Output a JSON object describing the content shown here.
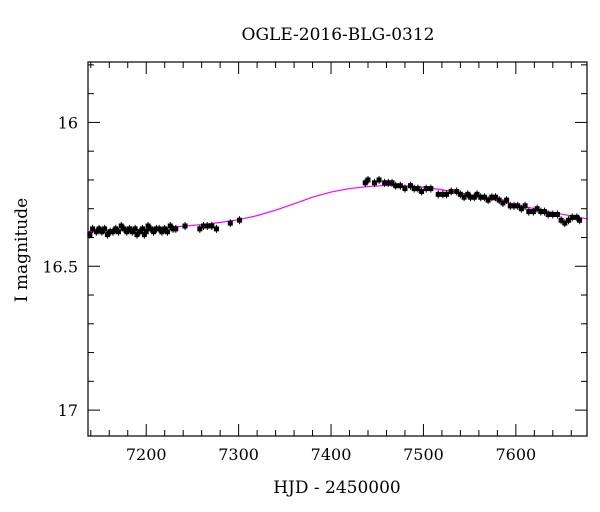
{
  "chart_data": {
    "type": "scatter",
    "title": "OGLE-2016-BLG-0312",
    "xlabel": "HJD - 2450000",
    "ylabel": "I magnitude",
    "xlim": [
      7137,
      7677
    ],
    "ylim": [
      17.09,
      15.79
    ],
    "y_inverted": true,
    "x_ticks_major": [
      7200,
      7300,
      7400,
      7500,
      7600
    ],
    "x_ticks_minor_step": 20,
    "y_ticks_major": [
      16,
      16.5,
      17
    ],
    "y_ticks_minor_step": 0.1,
    "colors": {
      "points": "#000000",
      "model": "#ff00ff",
      "axes": "#000000"
    },
    "series": [
      {
        "kind": "points",
        "points": [
          [
            7139,
            16.39
          ],
          [
            7142,
            16.37
          ],
          [
            7146,
            16.38
          ],
          [
            7149,
            16.37
          ],
          [
            7152,
            16.38
          ],
          [
            7155,
            16.37
          ],
          [
            7158,
            16.39
          ],
          [
            7161,
            16.38
          ],
          [
            7164,
            16.38
          ],
          [
            7167,
            16.37
          ],
          [
            7170,
            16.38
          ],
          [
            7173,
            16.36
          ],
          [
            7176,
            16.37
          ],
          [
            7179,
            16.38
          ],
          [
            7182,
            16.37
          ],
          [
            7185,
            16.38
          ],
          [
            7188,
            16.37
          ],
          [
            7190,
            16.39
          ],
          [
            7193,
            16.38
          ],
          [
            7196,
            16.37
          ],
          [
            7198,
            16.39
          ],
          [
            7200,
            16.38
          ],
          [
            7202,
            16.36
          ],
          [
            7205,
            16.37
          ],
          [
            7208,
            16.38
          ],
          [
            7211,
            16.37
          ],
          [
            7214,
            16.37
          ],
          [
            7217,
            16.38
          ],
          [
            7220,
            16.37
          ],
          [
            7223,
            16.38
          ],
          [
            7226,
            16.36
          ],
          [
            7229,
            16.37
          ],
          [
            7232,
            16.37
          ],
          [
            7242,
            16.36
          ],
          [
            7258,
            16.37
          ],
          [
            7262,
            16.36
          ],
          [
            7266,
            16.36
          ],
          [
            7271,
            16.36
          ],
          [
            7276,
            16.37
          ],
          [
            7291,
            16.35
          ],
          [
            7301,
            16.34
          ],
          [
            7437,
            16.21
          ],
          [
            7440,
            16.2
          ],
          [
            7447,
            16.21
          ],
          [
            7452,
            16.2
          ],
          [
            7458,
            16.21
          ],
          [
            7462,
            16.21
          ],
          [
            7466,
            16.21
          ],
          [
            7470,
            16.22
          ],
          [
            7475,
            16.22
          ],
          [
            7480,
            16.23
          ],
          [
            7486,
            16.22
          ],
          [
            7490,
            16.23
          ],
          [
            7494,
            16.23
          ],
          [
            7498,
            16.24
          ],
          [
            7503,
            16.23
          ],
          [
            7508,
            16.23
          ],
          [
            7516,
            16.25
          ],
          [
            7521,
            16.25
          ],
          [
            7525,
            16.25
          ],
          [
            7530,
            16.24
          ],
          [
            7536,
            16.24
          ],
          [
            7540,
            16.25
          ],
          [
            7544,
            16.26
          ],
          [
            7548,
            16.25
          ],
          [
            7551,
            16.26
          ],
          [
            7555,
            16.26
          ],
          [
            7558,
            16.25
          ],
          [
            7562,
            16.26
          ],
          [
            7566,
            16.26
          ],
          [
            7570,
            16.27
          ],
          [
            7574,
            16.26
          ],
          [
            7578,
            16.26
          ],
          [
            7582,
            16.27
          ],
          [
            7586,
            16.28
          ],
          [
            7590,
            16.27
          ],
          [
            7594,
            16.29
          ],
          [
            7598,
            16.29
          ],
          [
            7602,
            16.29
          ],
          [
            7606,
            16.3
          ],
          [
            7610,
            16.29
          ],
          [
            7614,
            16.31
          ],
          [
            7619,
            16.31
          ],
          [
            7623,
            16.3
          ],
          [
            7627,
            16.31
          ],
          [
            7631,
            16.31
          ],
          [
            7635,
            16.32
          ],
          [
            7640,
            16.32
          ],
          [
            7645,
            16.32
          ],
          [
            7649,
            16.34
          ],
          [
            7653,
            16.35
          ],
          [
            7657,
            16.34
          ],
          [
            7661,
            16.33
          ],
          [
            7666,
            16.33
          ],
          [
            7669,
            16.34
          ]
        ]
      },
      {
        "kind": "line",
        "points": [
          [
            7137,
            16.38
          ],
          [
            7160,
            16.378
          ],
          [
            7180,
            16.375
          ],
          [
            7200,
            16.371
          ],
          [
            7220,
            16.366
          ],
          [
            7240,
            16.361
          ],
          [
            7260,
            16.355
          ],
          [
            7280,
            16.348
          ],
          [
            7300,
            16.338
          ],
          [
            7320,
            16.324
          ],
          [
            7340,
            16.305
          ],
          [
            7360,
            16.283
          ],
          [
            7380,
            16.26
          ],
          [
            7400,
            16.242
          ],
          [
            7420,
            16.23
          ],
          [
            7440,
            16.223
          ],
          [
            7460,
            16.219
          ],
          [
            7480,
            16.22
          ],
          [
            7500,
            16.225
          ],
          [
            7520,
            16.234
          ],
          [
            7540,
            16.245
          ],
          [
            7560,
            16.258
          ],
          [
            7580,
            16.272
          ],
          [
            7600,
            16.286
          ],
          [
            7620,
            16.3
          ],
          [
            7640,
            16.313
          ],
          [
            7660,
            16.325
          ],
          [
            7677,
            16.335
          ]
        ]
      }
    ]
  }
}
